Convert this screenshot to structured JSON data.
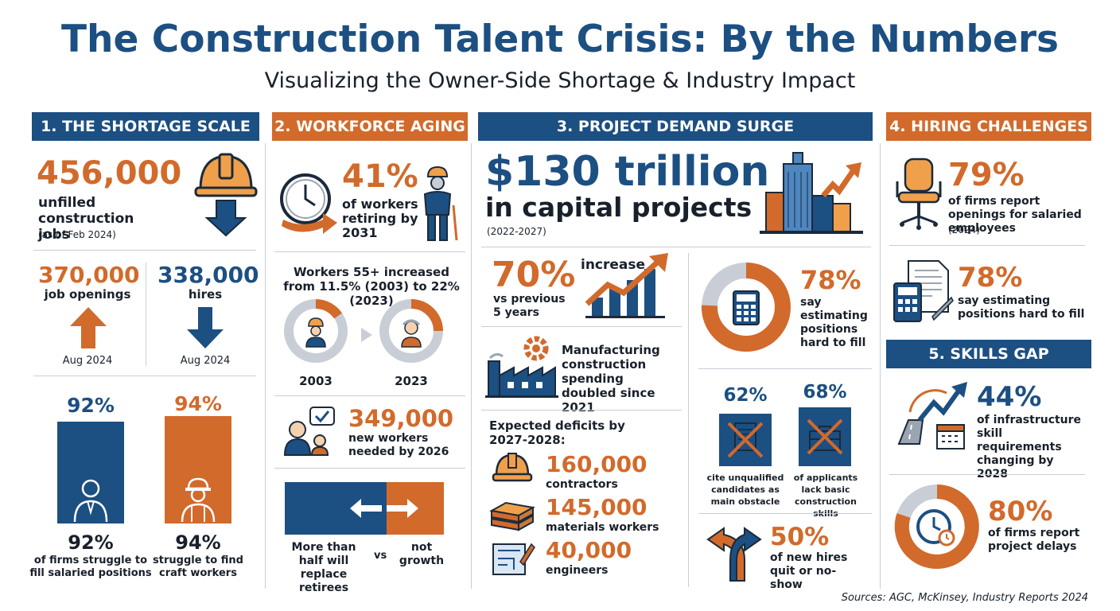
{
  "title": "The Construction Talent Crisis: By the Numbers",
  "subtitle": "Visualizing the Owner-Side Shortage & Industry Impact",
  "sources": "Sources: AGC, McKinsey, Industry Reports 2024",
  "colors": {
    "blue": "#1c4f82",
    "orange": "#d26a2b",
    "gray": "#c9ced6"
  },
  "s1": {
    "header": "1. THE SHORTAGE SCALE",
    "main_value": "456,000",
    "main_label": "unfilled construction jobs",
    "main_note": "(as of Feb 2024)",
    "openings_value": "370,000",
    "openings_label": "job openings",
    "openings_date": "Aug 2024",
    "hires_value": "338,000",
    "hires_label": "hires",
    "hires_date": "Aug 2024",
    "bar1_top": "92%",
    "bar2_top": "94%",
    "bar1_value": "92%",
    "bar1_label": "of firms struggle to fill salaried positions",
    "bar2_value": "94%",
    "bar2_label": "struggle to find craft workers"
  },
  "s2": {
    "header": "2. WORKFORCE AGING",
    "retire_value": "41%",
    "retire_label": "of workers retiring by 2031",
    "aging_text": "Workers 55+ increased from 11.5% (2003) to 22% (2023)",
    "year1": "2003",
    "year2": "2023",
    "new_value": "349,000",
    "new_label": "new workers needed by 2026",
    "replace_label": "More than half will replace retirees",
    "vs": "vs",
    "growth_label": "not growth"
  },
  "s3": {
    "header": "3. PROJECT DEMAND SURGE",
    "main_value": "$130 trillion",
    "main_label": "in capital projects",
    "main_note": "(2022-2027)",
    "increase_value": "70%",
    "increase_word": "increase",
    "increase_label": "vs previous 5 years",
    "manufacturing_label": "Manufacturing construction spending doubled since 2021",
    "deficits_title": "Expected deficits by 2027-2028:",
    "deficits": [
      {
        "value": "160,000",
        "label": "contractors"
      },
      {
        "value": "145,000",
        "label": "materials workers"
      },
      {
        "value": "40,000",
        "label": "engineers"
      }
    ],
    "estimating_value": "78%",
    "estimating_label": "say estimating positions hard to fill",
    "unqualified_value": "62%",
    "unqualified_label": "cite unqualified candidates as main obstacle",
    "skills_value": "68%",
    "skills_label": "of applicants lack basic construction skills",
    "quit_value": "50%",
    "quit_label": "of new hires quit or no-show"
  },
  "s4": {
    "header": "4. HIRING CHALLENGES",
    "salaried_value": "79%",
    "salaried_label": "of firms report openings for salaried employees",
    "salaried_note": "(2024)",
    "estimating_value": "78%",
    "estimating_label": "say estimating positions hard to fill"
  },
  "s5": {
    "header": "5. SKILLS GAP",
    "infra_value": "44%",
    "infra_label": "of infrastructure skill requirements changing by 2028",
    "delay_value": "80%",
    "delay_label": "of firms report project delays"
  }
}
